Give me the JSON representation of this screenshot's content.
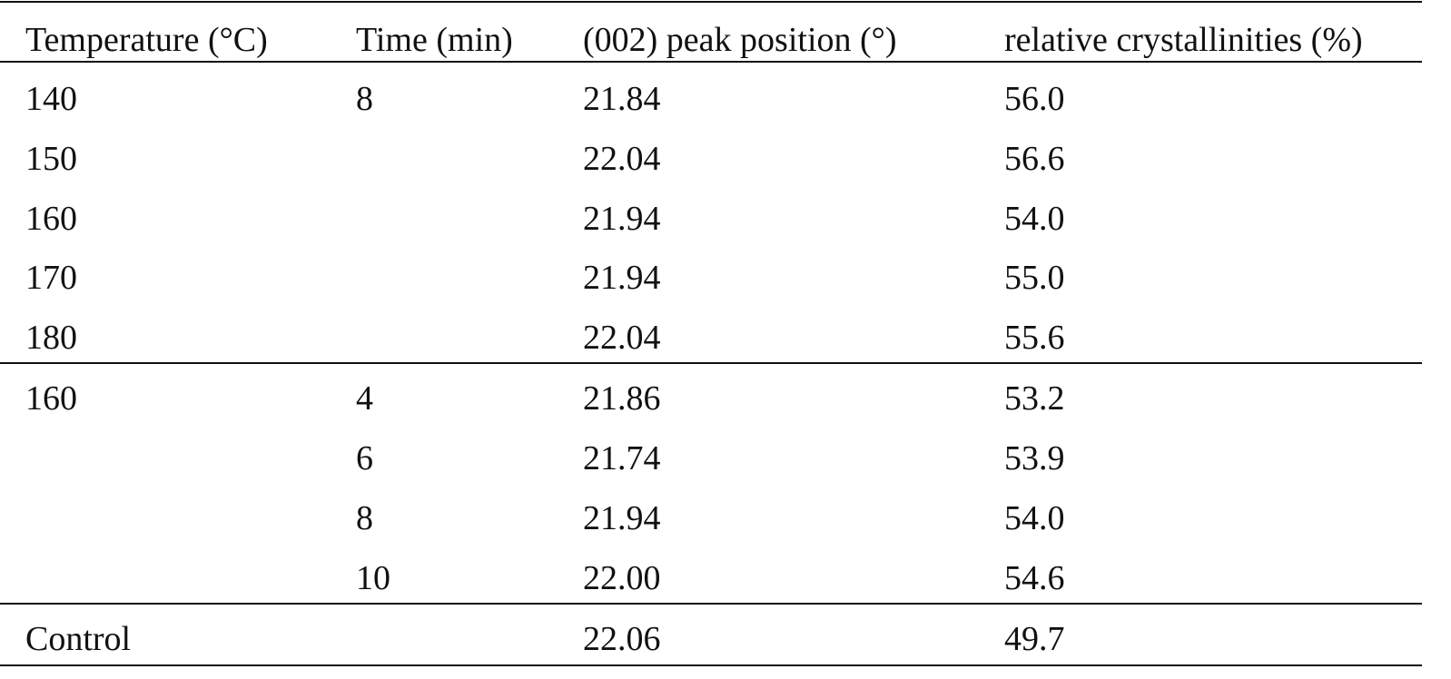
{
  "table": {
    "header": [
      "Temperature (°C)",
      "Time (min)",
      "(002) peak position (°)",
      "relative crystallinities (%)"
    ],
    "rows": [
      [
        "140",
        "8",
        "21.84",
        "56.0"
      ],
      [
        "150",
        null,
        "22.04",
        "56.6"
      ],
      [
        "160",
        null,
        "21.94",
        "54.0"
      ],
      [
        "170",
        null,
        "21.94",
        "55.0"
      ],
      [
        "180",
        null,
        "22.04",
        "55.6"
      ],
      [
        "160",
        "4",
        "21.86",
        "53.2"
      ],
      [
        null,
        "6",
        "21.74",
        "53.9"
      ],
      [
        null,
        "8",
        "21.94",
        "54.0"
      ],
      [
        null,
        "10",
        "22.00",
        "54.6"
      ],
      [
        "Control",
        null,
        "22.06",
        "49.7"
      ]
    ]
  }
}
